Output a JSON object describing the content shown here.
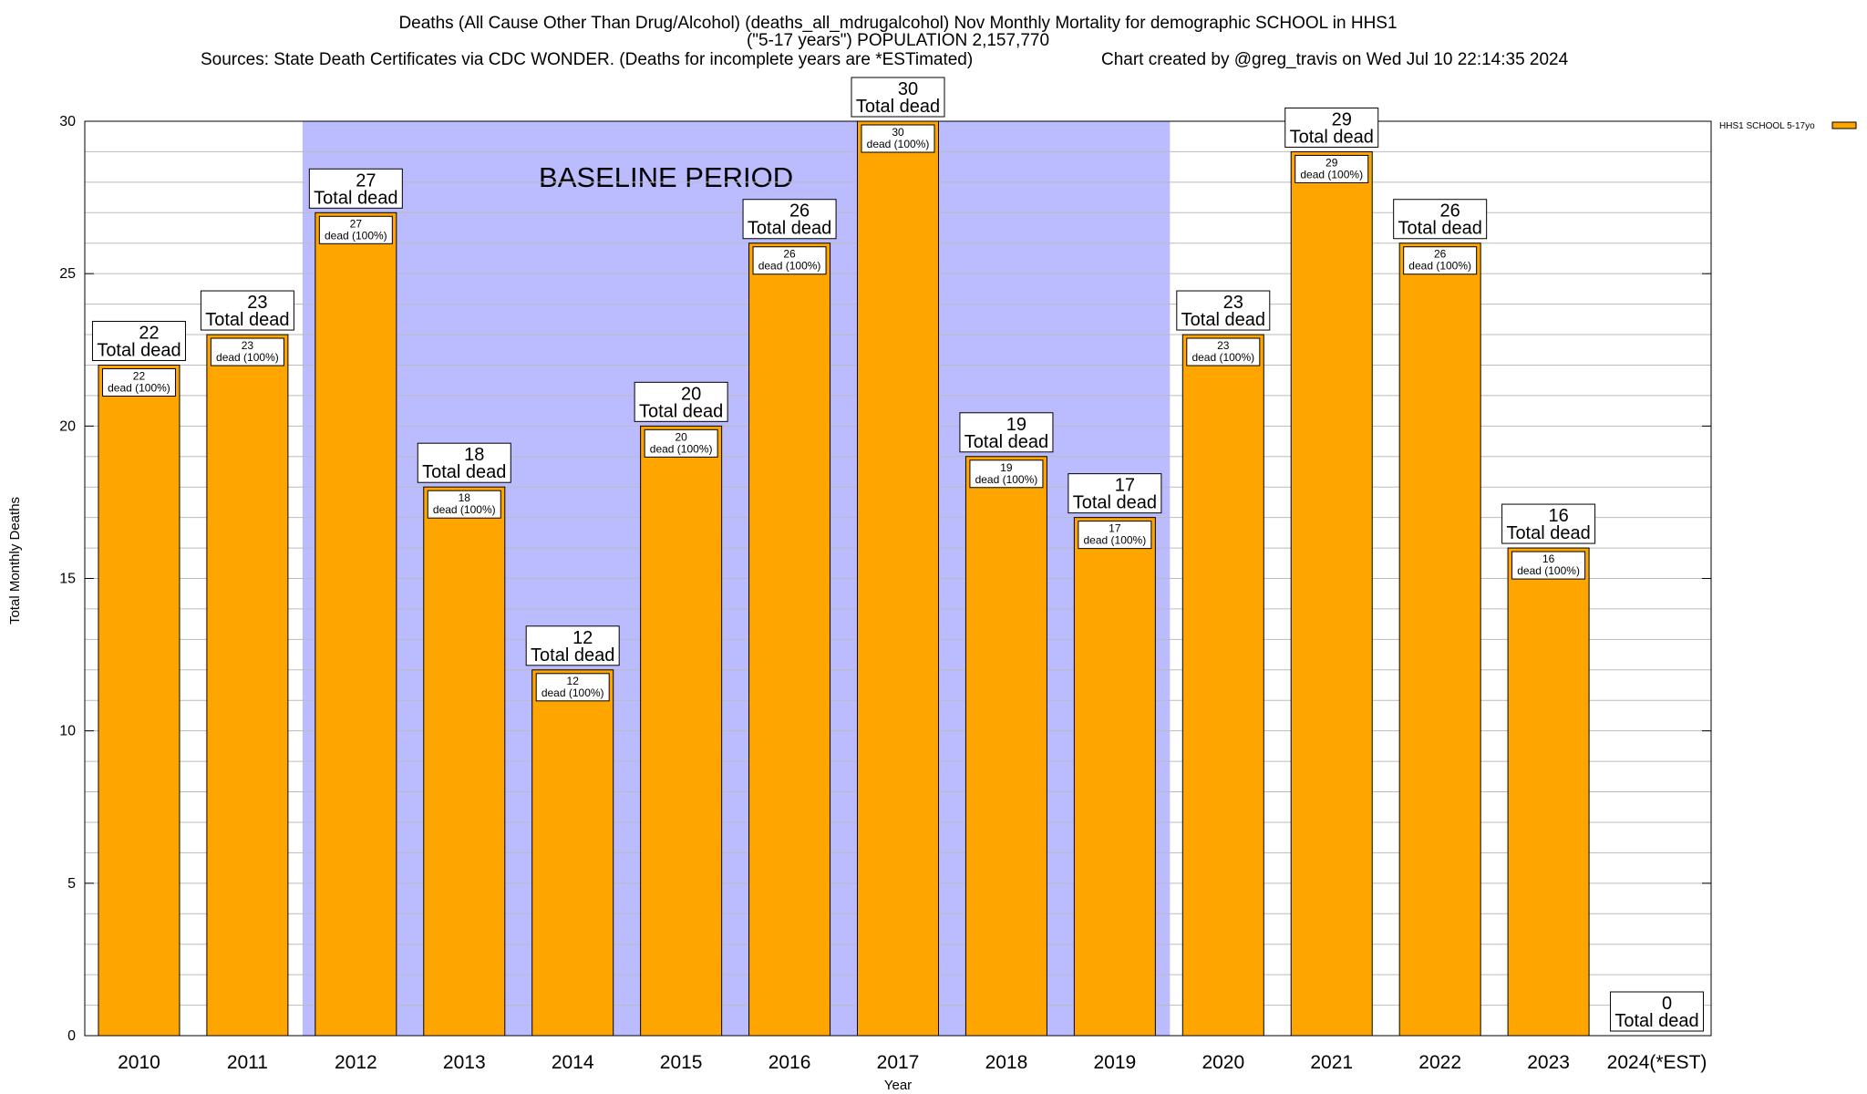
{
  "chart_data": {
    "type": "bar",
    "title_lines": [
      "Deaths (All Cause Other Than Drug/Alcohol) (deaths_all_mdrugalcohol) Nov Monthly Mortality for demographic SCHOOL in HHS1",
      "(\"5-17 years\") POPULATION 2,157,770"
    ],
    "sources_text": "Sources: State Death Certificates via CDC WONDER. (Deaths for incomplete years are *ESTimated)",
    "credit_text": "Chart created by @greg_travis on Wed Jul 10 22:14:35 2024",
    "xlabel": "Year",
    "ylabel": "Total Monthly Deaths",
    "ylim": [
      0,
      30
    ],
    "yticks": [
      "0",
      "5",
      "10",
      "15",
      "20",
      "25",
      "30"
    ],
    "minor_grid_step": 1,
    "grid": true,
    "categories": [
      "2010",
      "2011",
      "2012",
      "2013",
      "2014",
      "2015",
      "2016",
      "2017",
      "2018",
      "2019",
      "2020",
      "2021",
      "2022",
      "2023",
      "2024(*EST)"
    ],
    "series": [
      {
        "name": "HHS1 SCHOOL 5-17yo",
        "values": [
          22,
          23,
          27,
          18,
          12,
          20,
          26,
          30,
          19,
          17,
          23,
          29,
          26,
          16,
          0
        ]
      }
    ],
    "total_label_suffix": "Total dead",
    "inner_label_suffix": "dead (100%)",
    "baseline_period": {
      "label": "BASELINE PERIOD",
      "start_category": "2012",
      "end_category": "2019"
    },
    "legend_position": "top-right",
    "colors": {
      "bar_fill": "#FFA500",
      "bar_stroke": "#000000",
      "baseline_fill": "#BBBBFF",
      "grid": "#BBBBBB"
    }
  }
}
